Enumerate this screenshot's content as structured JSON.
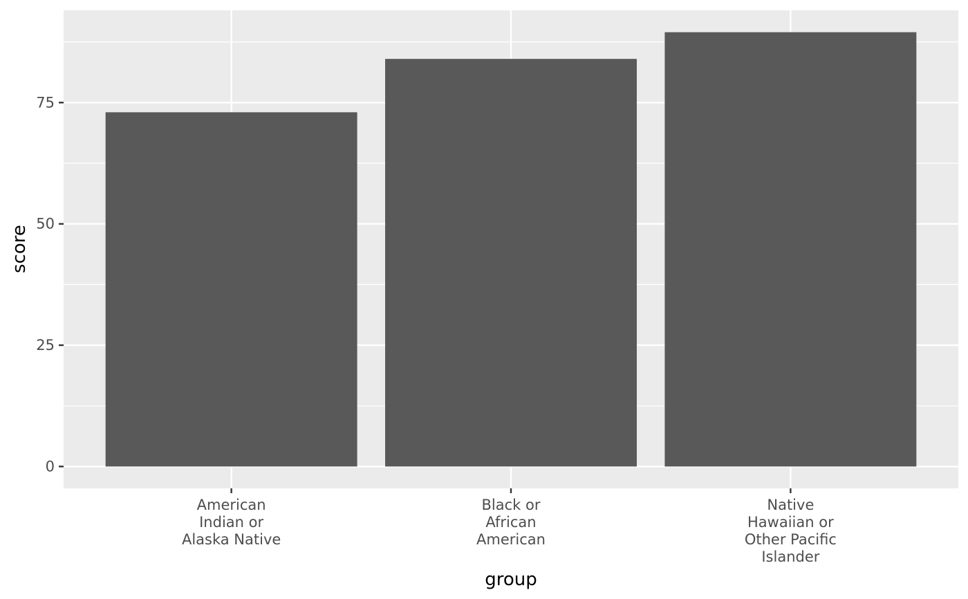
{
  "chart_data": {
    "type": "bar",
    "categories": [
      [
        "American",
        "Indian or",
        "Alaska Native"
      ],
      [
        "Black or",
        "African",
        "American"
      ],
      [
        "Native",
        "Hawaiian or",
        "Other Pacific",
        "Islander"
      ]
    ],
    "values": [
      73,
      84,
      89.5
    ],
    "xlabel": "group",
    "ylabel": "score",
    "ylim": [
      -4.5,
      94
    ],
    "yticks": [
      "0",
      "25",
      "50",
      "75"
    ],
    "grid": true,
    "colors": {
      "panel": "#ebebeb",
      "gridline": "#ffffff",
      "bar": "#595959",
      "tick": "#333333"
    }
  }
}
